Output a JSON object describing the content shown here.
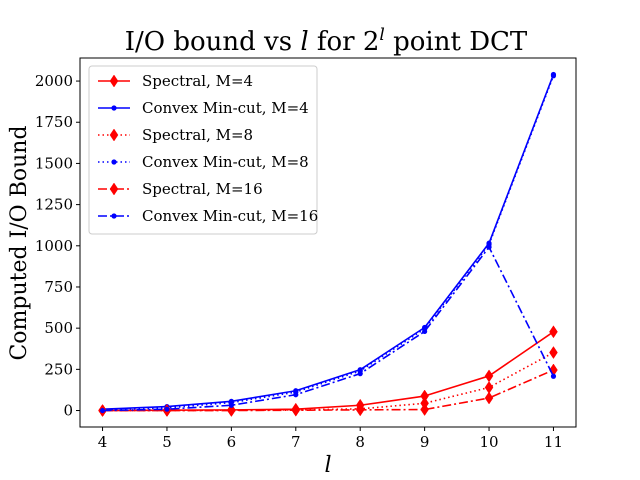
{
  "chart_data": {
    "type": "line",
    "title_main": "I/O bound vs ",
    "title_var": "l",
    "title_mid": " for 2",
    "title_sup": "l",
    "title_end": " point DCT",
    "xlabel": "l",
    "ylabel": "Computed I/O Bound",
    "x": [
      4,
      5,
      6,
      7,
      8,
      9,
      10,
      11
    ],
    "xlim": [
      3.65,
      11.35
    ],
    "ylim": [
      -100,
      2140
    ],
    "xticks": [
      "4",
      "5",
      "6",
      "7",
      "8",
      "9",
      "10",
      "11"
    ],
    "yticks": [
      0,
      250,
      500,
      750,
      1000,
      1250,
      1500,
      1750,
      2000
    ],
    "legend_position": "upper-left",
    "series": [
      {
        "name": "Spectral, M=4",
        "values": [
          0,
          2,
          4,
          8,
          32,
          88,
          210,
          478
        ],
        "color": "#ff0000",
        "line": "solid",
        "marker": "diamond"
      },
      {
        "name": "Convex Min-cut, M=4",
        "values": [
          8,
          24,
          56,
          120,
          248,
          504,
          1016,
          2040
        ],
        "color": "#0000ff",
        "line": "solid",
        "marker": "dot"
      },
      {
        "name": "Spectral, M=8",
        "values": [
          0,
          0,
          2,
          4,
          10,
          44,
          140,
          352
        ],
        "color": "#ff0000",
        "line": "dotted",
        "marker": "diamond"
      },
      {
        "name": "Convex Min-cut, M=8",
        "values": [
          4,
          16,
          48,
          112,
          240,
          496,
          1008,
          2032
        ],
        "color": "#0000ff",
        "line": "dotted",
        "marker": "dot"
      },
      {
        "name": "Spectral, M=16",
        "values": [
          0,
          0,
          0,
          2,
          4,
          6,
          76,
          246
        ],
        "color": "#ff0000",
        "line": "dashdot",
        "marker": "diamond"
      },
      {
        "name": "Convex Min-cut, M=16",
        "values": [
          0,
          8,
          32,
          96,
          224,
          480,
          992,
          208
        ],
        "color": "#0000ff",
        "line": "dashdot",
        "marker": "dot"
      }
    ]
  }
}
